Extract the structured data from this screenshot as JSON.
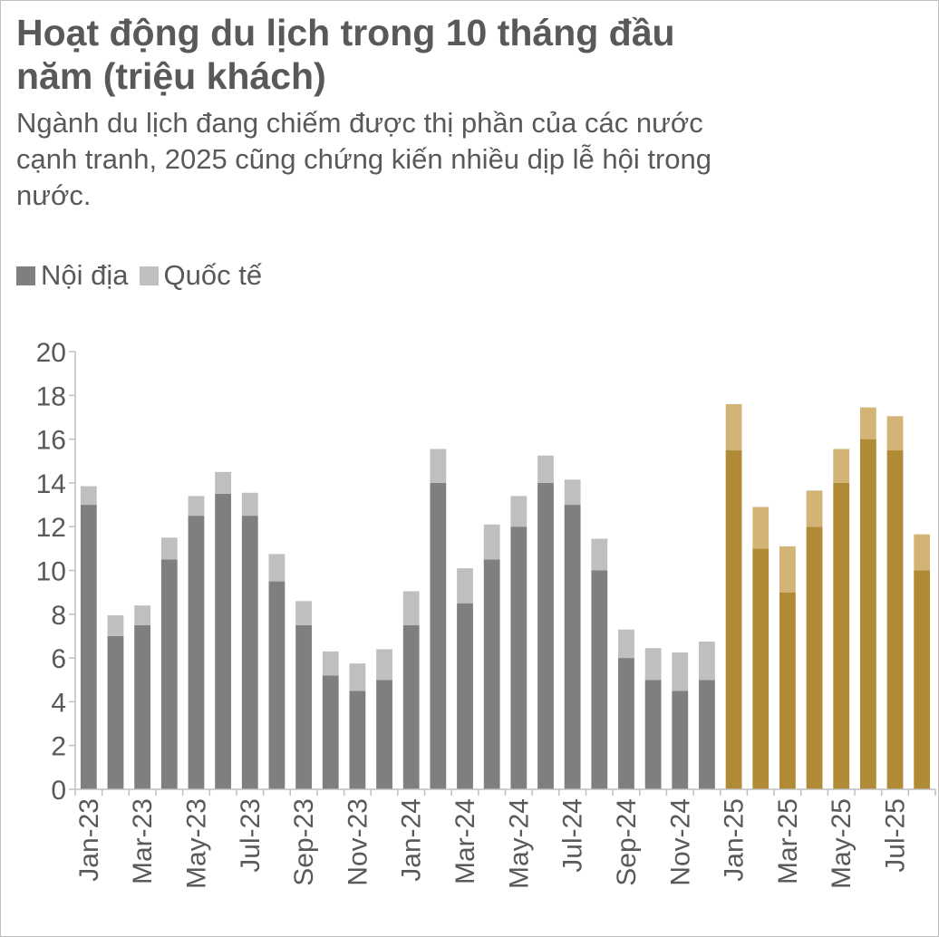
{
  "title": "Hoạt động du lịch trong 10 tháng đầu năm (triệu khách)",
  "subtitle": "Ngành du lịch đang chiếm được thị phần của các nước cạnh tranh, 2025 cũng chứng kiến nhiều dịp lễ hội trong nước.",
  "colors": {
    "domestic": "#7f7f7f",
    "international": "#bfbfbf",
    "domestic_2025": "#b08a35",
    "international_2025": "#d3b476",
    "text": "#595959",
    "axis": "#bfbfbf"
  },
  "chart_data": {
    "type": "bar",
    "stacked": true,
    "legend_position": "top-left",
    "grid": false,
    "ylim": [
      0,
      20
    ],
    "yticks": [
      0,
      2,
      4,
      6,
      8,
      10,
      12,
      14,
      16,
      18,
      20
    ],
    "categories": [
      "Jan-23",
      "Feb-23",
      "Mar-23",
      "Apr-23",
      "May-23",
      "Jun-23",
      "Jul-23",
      "Aug-23",
      "Sep-23",
      "Oct-23",
      "Nov-23",
      "Dec-23",
      "Jan-24",
      "Feb-24",
      "Mar-24",
      "Apr-24",
      "May-24",
      "Jun-24",
      "Jul-24",
      "Aug-24",
      "Sep-24",
      "Oct-24",
      "Nov-24",
      "Dec-24",
      "Jan-25",
      "Feb-25",
      "Mar-25",
      "Apr-25",
      "May-25",
      "Jun-25",
      "Jul-25",
      "Aug-25"
    ],
    "tick_labels": [
      "Jan-23",
      "",
      "Mar-23",
      "",
      "May-23",
      "",
      "Jul-23",
      "",
      "Sep-23",
      "",
      "Nov-23",
      "",
      "Jan-24",
      "",
      "Mar-24",
      "",
      "May-24",
      "",
      "Jul-24",
      "",
      "Sep-24",
      "",
      "Nov-24",
      "",
      "Jan-25",
      "",
      "Mar-25",
      "",
      "May-25",
      "",
      "Jul-25",
      ""
    ],
    "highlight_from_index": 24,
    "series": [
      {
        "name": "Nội địa",
        "values": [
          13.0,
          7.0,
          7.5,
          10.5,
          12.5,
          13.5,
          12.5,
          9.5,
          7.5,
          5.2,
          4.5,
          5.0,
          7.5,
          14.0,
          8.5,
          10.5,
          12.0,
          14.0,
          13.0,
          10.0,
          6.0,
          5.0,
          4.5,
          5.0,
          15.5,
          11.0,
          9.0,
          12.0,
          14.0,
          16.0,
          15.5,
          10.0
        ]
      },
      {
        "name": "Quốc tế",
        "values": [
          0.85,
          0.95,
          0.9,
          1.0,
          0.9,
          1.0,
          1.05,
          1.25,
          1.1,
          1.1,
          1.25,
          1.4,
          1.55,
          1.55,
          1.6,
          1.6,
          1.4,
          1.25,
          1.15,
          1.45,
          1.3,
          1.45,
          1.75,
          1.75,
          2.1,
          1.9,
          2.1,
          1.65,
          1.55,
          1.45,
          1.55,
          1.65
        ]
      }
    ]
  }
}
